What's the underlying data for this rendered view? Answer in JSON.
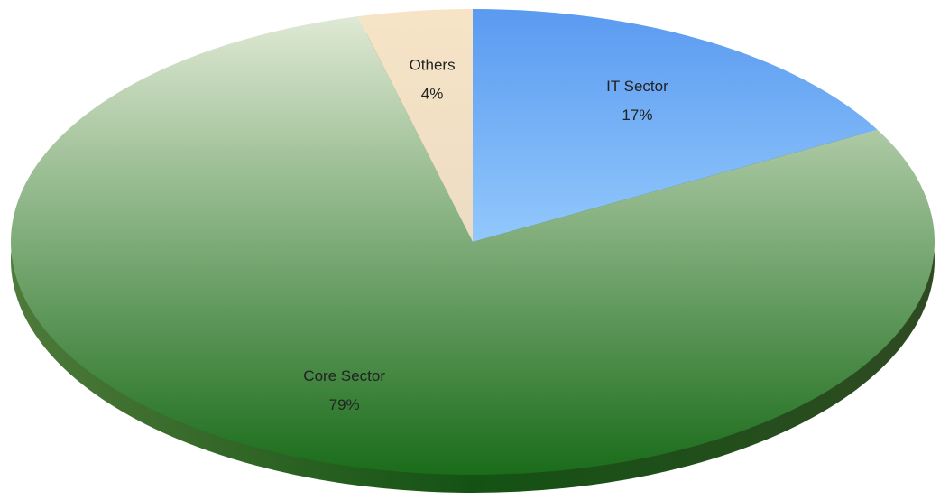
{
  "chart_data": {
    "type": "pie",
    "categories": [
      "IT Sector",
      "Core Sector",
      "Others"
    ],
    "values": [
      17,
      79,
      4
    ],
    "value_labels": [
      "17%",
      "79%",
      "4%"
    ],
    "colors": [
      [
        "#5a9af0",
        "#92c8fc"
      ],
      [
        "#dfe9d4",
        "#1a6c1a"
      ],
      [
        "#f7e4c6",
        "#ecdcc4"
      ]
    ]
  }
}
